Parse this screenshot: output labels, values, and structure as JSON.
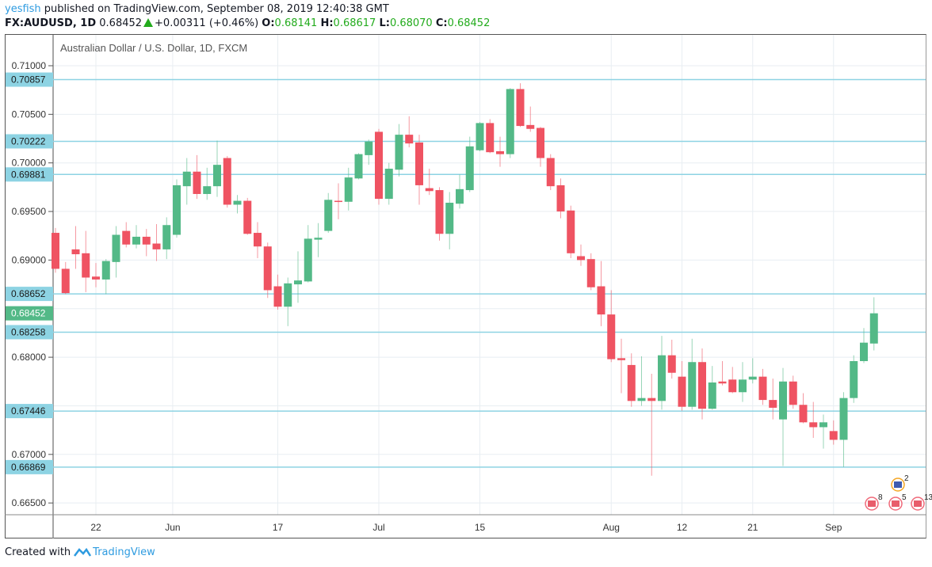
{
  "header": {
    "user": "yesfish",
    "published": " published on TradingView.com, September 08, 2019 12:40:38 GMT",
    "symbol": "FX:AUDUSD, 1D",
    "last": "0.68452",
    "change": "+0.00311 (+0.46%)",
    "o_label": "O:",
    "o": "0.68141",
    "h_label": "H:",
    "h": "0.68617",
    "l_label": "L:",
    "l": "0.68070",
    "c_label": "C:",
    "c": "0.68452"
  },
  "footer": {
    "created": "Created with",
    "brand": "TradingView"
  },
  "colors": {
    "up": "#53b987",
    "down": "#ef5362",
    "level": "#8dd3e3",
    "grid": "#e8eef2",
    "current": "#53b987"
  },
  "chart_data": {
    "type": "candlestick",
    "title": "Australian Dollar / U.S. Dollar, 1D, FXCM",
    "ylim": [
      0.6638,
      0.7133
    ],
    "y_ticks": [
      "0.71000",
      "0.70500",
      "0.70000",
      "0.69500",
      "0.69000",
      "0.68000",
      "0.67000",
      "0.66500"
    ],
    "x_ticks": [
      {
        "label": "22",
        "index": 4
      },
      {
        "label": "Jun",
        "index": 11.6
      },
      {
        "label": "17",
        "index": 22
      },
      {
        "label": "Jul",
        "index": 32
      },
      {
        "label": "15",
        "index": 42
      },
      {
        "label": "Aug",
        "index": 55
      },
      {
        "label": "12",
        "index": 62
      },
      {
        "label": "21",
        "index": 69
      },
      {
        "label": "Sep",
        "index": 77
      }
    ],
    "levels": [
      "0.70857",
      "0.70222",
      "0.69881",
      "0.68652",
      "0.68258",
      "0.67446",
      "0.66869"
    ],
    "current_price": "0.68452",
    "ohlc": [
      [
        0.6928,
        0.6933,
        0.6887,
        0.6891
      ],
      [
        0.6891,
        0.6898,
        0.6865,
        0.6866
      ],
      [
        0.6911,
        0.6935,
        0.6891,
        0.6906
      ],
      [
        0.6907,
        0.693,
        0.6867,
        0.6882
      ],
      [
        0.6883,
        0.6897,
        0.6872,
        0.688
      ],
      [
        0.688,
        0.6901,
        0.6865,
        0.6899
      ],
      [
        0.6898,
        0.6935,
        0.6882,
        0.6926
      ],
      [
        0.693,
        0.6939,
        0.6913,
        0.6916
      ],
      [
        0.6916,
        0.6936,
        0.6912,
        0.6924
      ],
      [
        0.6924,
        0.6932,
        0.6904,
        0.6916
      ],
      [
        0.6917,
        0.6937,
        0.6899,
        0.6911
      ],
      [
        0.6911,
        0.6944,
        0.6901,
        0.6936
      ],
      [
        0.6926,
        0.6983,
        0.6923,
        0.6977
      ],
      [
        0.6976,
        0.7005,
        0.6957,
        0.6991
      ],
      [
        0.6991,
        0.7008,
        0.6963,
        0.6968
      ],
      [
        0.6968,
        0.6995,
        0.6962,
        0.6976
      ],
      [
        0.6976,
        0.7023,
        0.6965,
        0.6998
      ],
      [
        0.7005,
        0.7007,
        0.6954,
        0.6957
      ],
      [
        0.6957,
        0.6967,
        0.6948,
        0.6961
      ],
      [
        0.6961,
        0.6964,
        0.6926,
        0.6927
      ],
      [
        0.6928,
        0.6939,
        0.6902,
        0.6914
      ],
      [
        0.6914,
        0.6918,
        0.6861,
        0.6869
      ],
      [
        0.6873,
        0.6885,
        0.6849,
        0.6852
      ],
      [
        0.6852,
        0.6882,
        0.6832,
        0.6876
      ],
      [
        0.6875,
        0.6909,
        0.6856,
        0.6879
      ],
      [
        0.6878,
        0.6936,
        0.6877,
        0.6922
      ],
      [
        0.6921,
        0.6938,
        0.6903,
        0.6923
      ],
      [
        0.693,
        0.6969,
        0.6928,
        0.6962
      ],
      [
        0.6961,
        0.6979,
        0.6942,
        0.696
      ],
      [
        0.696,
        0.6995,
        0.6951,
        0.6985
      ],
      [
        0.6984,
        0.701,
        0.6983,
        0.7009
      ],
      [
        0.7008,
        0.7024,
        0.6998,
        0.7022
      ],
      [
        0.7032,
        0.7035,
        0.6957,
        0.6963
      ],
      [
        0.6963,
        0.7,
        0.6957,
        0.6994
      ],
      [
        0.6993,
        0.704,
        0.6986,
        0.7029
      ],
      [
        0.7029,
        0.7048,
        0.7016,
        0.702
      ],
      [
        0.7021,
        0.7029,
        0.6957,
        0.6977
      ],
      [
        0.6974,
        0.6994,
        0.6967,
        0.6971
      ],
      [
        0.6972,
        0.6975,
        0.692,
        0.6927
      ],
      [
        0.6927,
        0.697,
        0.6911,
        0.6959
      ],
      [
        0.6958,
        0.6988,
        0.6953,
        0.6973
      ],
      [
        0.6972,
        0.7027,
        0.697,
        0.7017
      ],
      [
        0.7013,
        0.7042,
        0.7012,
        0.7041
      ],
      [
        0.7041,
        0.7045,
        0.701,
        0.7011
      ],
      [
        0.7012,
        0.7027,
        0.6996,
        0.7009
      ],
      [
        0.7009,
        0.7077,
        0.7005,
        0.7076
      ],
      [
        0.7076,
        0.7082,
        0.7037,
        0.7038
      ],
      [
        0.7039,
        0.7058,
        0.7032,
        0.7035
      ],
      [
        0.7036,
        0.7037,
        0.6996,
        0.7005
      ],
      [
        0.7005,
        0.7009,
        0.6972,
        0.6976
      ],
      [
        0.6977,
        0.6984,
        0.6943,
        0.695
      ],
      [
        0.6951,
        0.6956,
        0.6902,
        0.6907
      ],
      [
        0.6904,
        0.6916,
        0.6894,
        0.69
      ],
      [
        0.6901,
        0.6907,
        0.6869,
        0.6872
      ],
      [
        0.6873,
        0.6899,
        0.6832,
        0.6844
      ],
      [
        0.6844,
        0.6869,
        0.6795,
        0.6798
      ],
      [
        0.6799,
        0.6819,
        0.6763,
        0.6797
      ],
      [
        0.6792,
        0.6804,
        0.6749,
        0.6755
      ],
      [
        0.6755,
        0.6801,
        0.675,
        0.6758
      ],
      [
        0.6758,
        0.6783,
        0.6678,
        0.6755
      ],
      [
        0.6755,
        0.6822,
        0.6746,
        0.6802
      ],
      [
        0.6802,
        0.6818,
        0.6778,
        0.6784
      ],
      [
        0.678,
        0.6796,
        0.6745,
        0.6749
      ],
      [
        0.6749,
        0.6819,
        0.6746,
        0.6795
      ],
      [
        0.6795,
        0.6809,
        0.6736,
        0.6747
      ],
      [
        0.6747,
        0.6791,
        0.6746,
        0.6774
      ],
      [
        0.6775,
        0.6796,
        0.6771,
        0.6773
      ],
      [
        0.6777,
        0.679,
        0.6763,
        0.6764
      ],
      [
        0.6764,
        0.6795,
        0.6754,
        0.6777
      ],
      [
        0.6777,
        0.6799,
        0.6773,
        0.678
      ],
      [
        0.678,
        0.6788,
        0.6751,
        0.6756
      ],
      [
        0.6756,
        0.6778,
        0.6736,
        0.6748
      ],
      [
        0.6736,
        0.6789,
        0.6688,
        0.6775
      ],
      [
        0.6775,
        0.6781,
        0.6747,
        0.6751
      ],
      [
        0.6751,
        0.6763,
        0.6732,
        0.6733
      ],
      [
        0.6733,
        0.6754,
        0.6717,
        0.6728
      ],
      [
        0.6728,
        0.6741,
        0.6706,
        0.6733
      ],
      [
        0.6724,
        0.6735,
        0.671,
        0.6715
      ],
      [
        0.6715,
        0.6764,
        0.6687,
        0.6758
      ],
      [
        0.6758,
        0.6802,
        0.6753,
        0.6796
      ],
      [
        0.6796,
        0.683,
        0.6794,
        0.6815
      ],
      [
        0.68141,
        0.68617,
        0.6807,
        0.68452
      ]
    ],
    "events": [
      {
        "flag": "AU",
        "count": "2"
      },
      {
        "flag": "US",
        "count": "8"
      },
      {
        "flag": "US",
        "count": "5"
      },
      {
        "flag": "US",
        "count": "13"
      }
    ]
  }
}
